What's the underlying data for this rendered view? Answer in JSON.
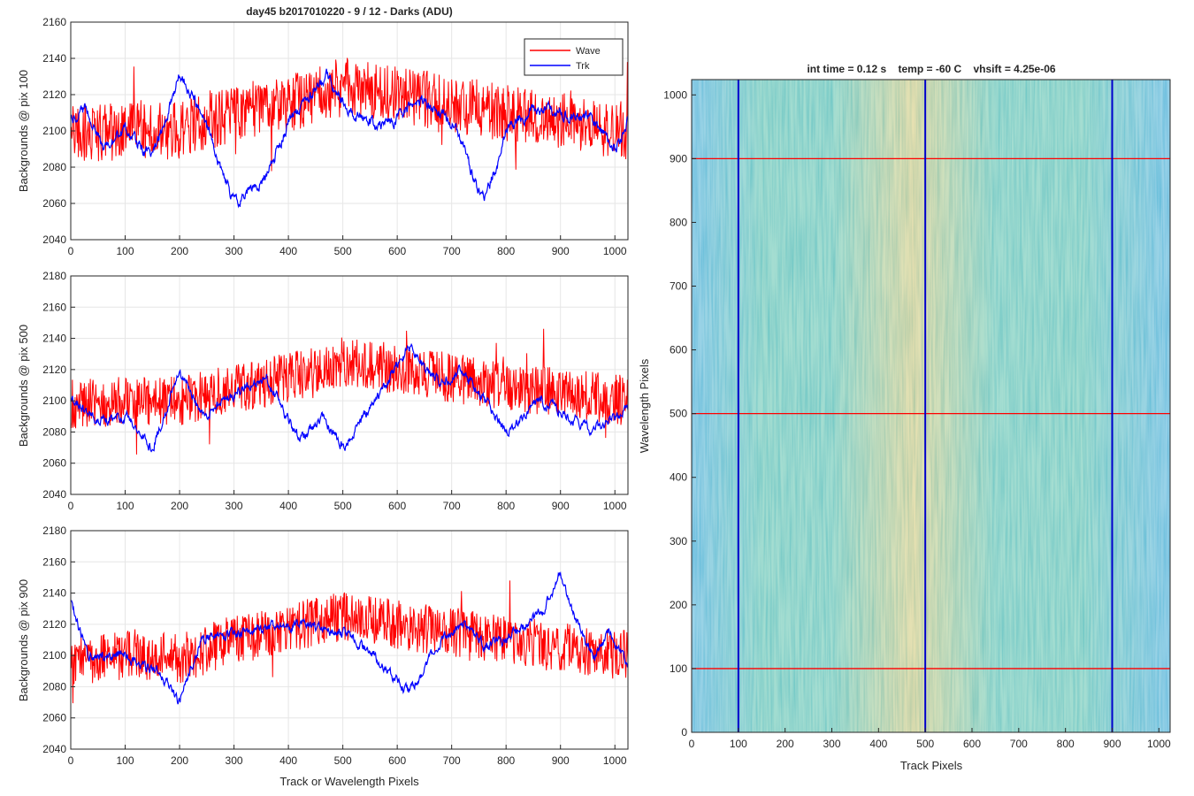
{
  "chart_data": [
    {
      "type": "line",
      "title": "day45 b2017010220 - 9 / 12 - Darks (ADU)",
      "xlabel": "",
      "ylabel": "Backgrounds @ pix 100",
      "xlim": [
        0,
        1024
      ],
      "ylim": [
        2040,
        2160
      ],
      "xticks": [
        0,
        100,
        200,
        300,
        400,
        500,
        600,
        700,
        800,
        900,
        1000
      ],
      "yticks": [
        2040,
        2060,
        2080,
        2100,
        2120,
        2140,
        2160
      ],
      "grid": true,
      "legend": {
        "position": "top-right",
        "entries": [
          "Wave",
          "Trk"
        ]
      },
      "series": [
        {
          "name": "Wave",
          "color": "#ff0000",
          "trend": [
            [
              0,
              2098
            ],
            [
              100,
              2100
            ],
            [
              200,
              2100
            ],
            [
              300,
              2110
            ],
            [
              400,
              2115
            ],
            [
              500,
              2125
            ],
            [
              600,
              2120
            ],
            [
              700,
              2115
            ],
            [
              800,
              2110
            ],
            [
              900,
              2105
            ],
            [
              1024,
              2100
            ]
          ],
          "noise_amplitude": 16
        },
        {
          "name": "Trk",
          "color": "#0000ff",
          "trend": [
            [
              0,
              2108
            ],
            [
              30,
              2112
            ],
            [
              60,
              2090
            ],
            [
              100,
              2100
            ],
            [
              150,
              2085
            ],
            [
              200,
              2132
            ],
            [
              240,
              2110
            ],
            [
              300,
              2060
            ],
            [
              360,
              2075
            ],
            [
              400,
              2105
            ],
            [
              470,
              2130
            ],
            [
              520,
              2108
            ],
            [
              580,
              2102
            ],
            [
              640,
              2118
            ],
            [
              700,
              2105
            ],
            [
              760,
              2060
            ],
            [
              800,
              2100
            ],
            [
              850,
              2112
            ],
            [
              900,
              2110
            ],
            [
              960,
              2105
            ],
            [
              1000,
              2090
            ],
            [
              1024,
              2105
            ]
          ],
          "noise_amplitude": 5
        }
      ]
    },
    {
      "type": "line",
      "title": "",
      "xlabel": "",
      "ylabel": "Backgrounds @ pix 500",
      "xlim": [
        0,
        1024
      ],
      "ylim": [
        2040,
        2180
      ],
      "xticks": [
        0,
        100,
        200,
        300,
        400,
        500,
        600,
        700,
        800,
        900,
        1000
      ],
      "yticks": [
        2040,
        2060,
        2080,
        2100,
        2120,
        2140,
        2160,
        2180
      ],
      "grid": true,
      "series": [
        {
          "name": "Wave",
          "color": "#ff0000",
          "trend": [
            [
              0,
              2098
            ],
            [
              100,
              2100
            ],
            [
              200,
              2100
            ],
            [
              300,
              2108
            ],
            [
              400,
              2115
            ],
            [
              500,
              2125
            ],
            [
              600,
              2120
            ],
            [
              700,
              2115
            ],
            [
              800,
              2108
            ],
            [
              900,
              2105
            ],
            [
              1024,
              2100
            ]
          ],
          "noise_amplitude": 16
        },
        {
          "name": "Trk",
          "color": "#0000ff",
          "trend": [
            [
              0,
              2102
            ],
            [
              50,
              2088
            ],
            [
              100,
              2090
            ],
            [
              150,
              2070
            ],
            [
              200,
              2120
            ],
            [
              240,
              2090
            ],
            [
              300,
              2105
            ],
            [
              360,
              2115
            ],
            [
              420,
              2075
            ],
            [
              460,
              2090
            ],
            [
              500,
              2070
            ],
            [
              560,
              2100
            ],
            [
              620,
              2135
            ],
            [
              680,
              2110
            ],
            [
              720,
              2120
            ],
            [
              760,
              2100
            ],
            [
              800,
              2080
            ],
            [
              860,
              2100
            ],
            [
              920,
              2090
            ],
            [
              960,
              2080
            ],
            [
              1000,
              2090
            ],
            [
              1024,
              2095
            ]
          ],
          "noise_amplitude": 5
        }
      ]
    },
    {
      "type": "line",
      "title": "",
      "xlabel": "Track or Wavelength Pixels",
      "ylabel": "Backgrounds @ pix 900",
      "xlim": [
        0,
        1024
      ],
      "ylim": [
        2040,
        2180
      ],
      "xticks": [
        0,
        100,
        200,
        300,
        400,
        500,
        600,
        700,
        800,
        900,
        1000
      ],
      "yticks": [
        2040,
        2060,
        2080,
        2100,
        2120,
        2140,
        2160,
        2180
      ],
      "grid": true,
      "series": [
        {
          "name": "Wave",
          "color": "#ff0000",
          "trend": [
            [
              0,
              2095
            ],
            [
              100,
              2100
            ],
            [
              200,
              2098
            ],
            [
              300,
              2110
            ],
            [
              400,
              2118
            ],
            [
              500,
              2125
            ],
            [
              600,
              2120
            ],
            [
              700,
              2115
            ],
            [
              800,
              2110
            ],
            [
              900,
              2105
            ],
            [
              1024,
              2100
            ]
          ],
          "noise_amplitude": 16
        },
        {
          "name": "Trk",
          "color": "#0000ff",
          "trend": [
            [
              0,
              2137
            ],
            [
              30,
              2100
            ],
            [
              100,
              2100
            ],
            [
              160,
              2090
            ],
            [
              200,
              2070
            ],
            [
              240,
              2110
            ],
            [
              300,
              2115
            ],
            [
              400,
              2120
            ],
            [
              500,
              2115
            ],
            [
              560,
              2100
            ],
            [
              620,
              2075
            ],
            [
              680,
              2110
            ],
            [
              720,
              2120
            ],
            [
              760,
              2105
            ],
            [
              820,
              2115
            ],
            [
              870,
              2130
            ],
            [
              900,
              2152
            ],
            [
              930,
              2120
            ],
            [
              960,
              2100
            ],
            [
              990,
              2115
            ],
            [
              1024,
              2095
            ]
          ],
          "noise_amplitude": 5
        }
      ]
    },
    {
      "type": "heatmap",
      "title": "int time = 0.12 s    temp = -60 C    vhsift = 4.25e-06",
      "xlabel": "Track Pixels",
      "ylabel": "Wavelength Pixels",
      "xlim": [
        0,
        1024
      ],
      "ylim": [
        0,
        1024
      ],
      "xticks": [
        0,
        100,
        200,
        300,
        400,
        500,
        600,
        700,
        800,
        900,
        1000
      ],
      "yticks": [
        0,
        100,
        200,
        300,
        400,
        500,
        600,
        700,
        800,
        900,
        1000
      ],
      "colormap": "parula",
      "colors": {
        "low": "#1a9ad0",
        "mid": "#35b59a",
        "high": "#c9bc52"
      },
      "bright_band_x": [
        300,
        650
      ],
      "vertical_markers": {
        "color": "#0000cc",
        "x": [
          100,
          500,
          900
        ]
      },
      "horizontal_markers": {
        "color": "#ff0000",
        "y": [
          100,
          500,
          900
        ]
      }
    }
  ]
}
